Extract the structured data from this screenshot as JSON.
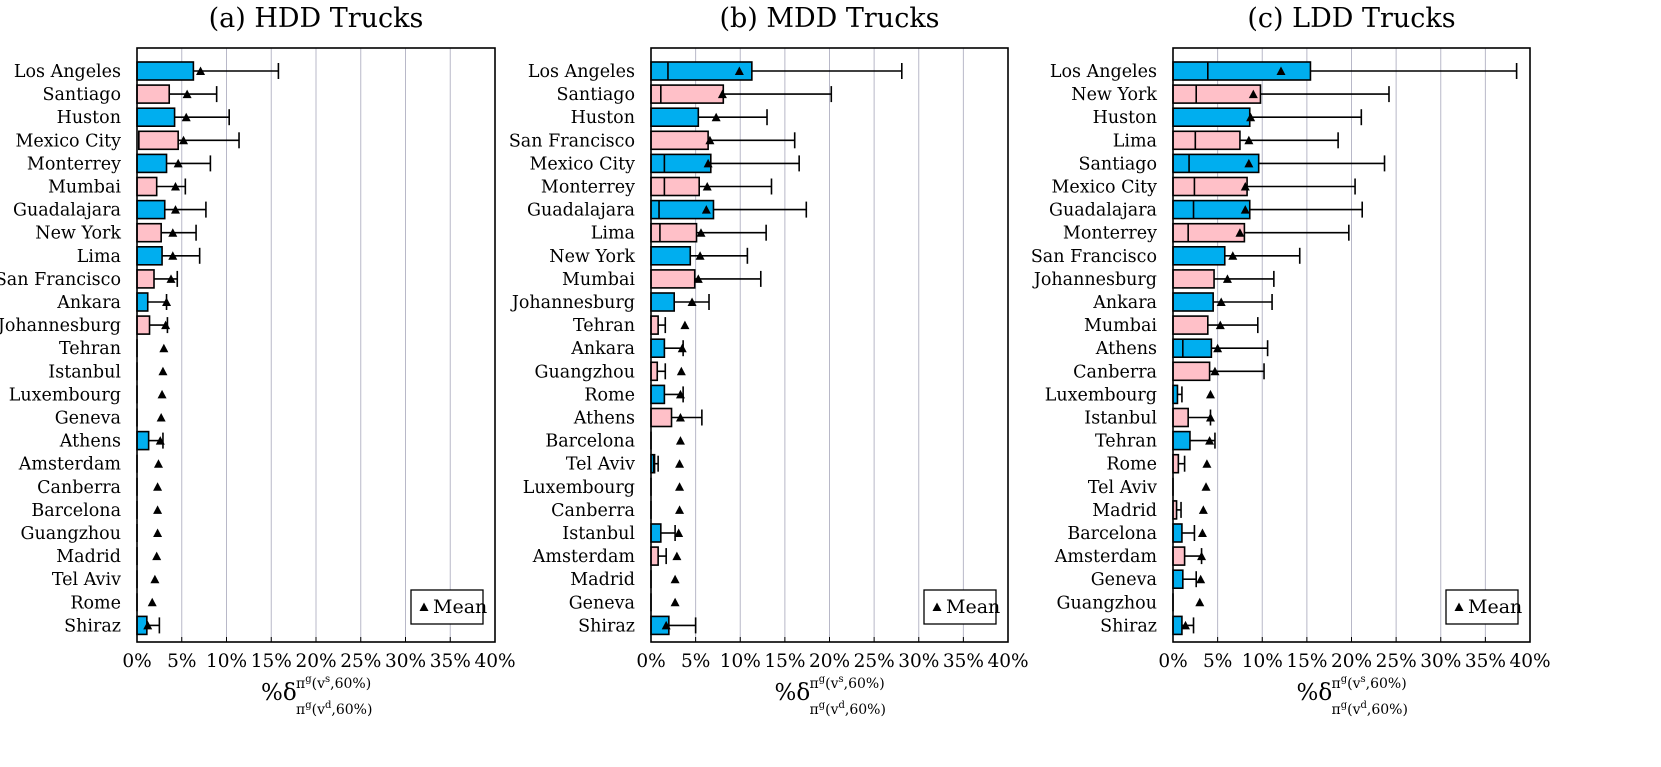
{
  "colors": {
    "blue": "#00aeef",
    "pink": "#ffc0c8",
    "grid": "#b8b8c8",
    "stroke": "#000000"
  },
  "legend_label": "Mean",
  "xlabel": {
    "main": "%δ",
    "sup": "π",
    "sup_sub": "g",
    "sup_args": "(v",
    "sup_s": "s",
    "sup_tail": ",60%)",
    "sub": "π",
    "sub_sup": "g",
    "sub_args": "(v",
    "sub_d": "d",
    "sub_tail": ",60%)"
  },
  "chart_data": [
    {
      "type": "bar",
      "title": "(a) HDD Trucks",
      "xlim": [
        0,
        40
      ],
      "xticks": [
        "0%",
        "5%",
        "10%",
        "15%",
        "20%",
        "25%",
        "30%",
        "35%",
        "40%"
      ],
      "grid": true,
      "legend": "bottom-right",
      "categories": [
        "Los Angeles",
        "Santiago",
        "Huston",
        "Mexico City",
        "Monterrey",
        "Mumbai",
        "Guadalajara",
        "New York",
        "Lima",
        "San Francisco",
        "Ankara",
        "Johannesburg",
        "Tehran",
        "Istanbul",
        "Luxembourg",
        "Geneva",
        "Athens",
        "Amsterdam",
        "Canberra",
        "Barcelona",
        "Guangzhou",
        "Madrid",
        "Tel Aviv",
        "Rome",
        "Shiraz"
      ],
      "bar_colors": [
        "blue",
        "pink",
        "blue",
        "pink",
        "blue",
        "pink",
        "blue",
        "pink",
        "blue",
        "pink",
        "blue",
        "pink",
        "pink",
        "pink",
        "pink",
        "pink",
        "blue",
        "pink",
        "pink",
        "pink",
        "pink",
        "pink",
        "pink",
        "pink",
        "blue"
      ],
      "q1": [
        0,
        0,
        0,
        0.2,
        0,
        0,
        0,
        0,
        0,
        0,
        0,
        0,
        0,
        0,
        0,
        0,
        0,
        0,
        0,
        0,
        0,
        0,
        0,
        0,
        0
      ],
      "median": [
        0,
        0,
        0,
        0.2,
        0,
        0,
        0,
        0,
        0,
        0,
        0,
        0,
        0,
        0,
        0,
        0,
        0,
        0,
        0,
        0,
        0,
        0,
        0,
        0,
        0
      ],
      "q3": [
        6.3,
        3.6,
        4.2,
        4.6,
        3.3,
        2.2,
        3.1,
        2.7,
        2.8,
        1.9,
        1.2,
        1.4,
        0,
        0,
        0,
        0,
        1.3,
        0,
        0,
        0,
        0,
        0,
        0,
        0,
        1.1
      ],
      "whisker": [
        15.8,
        8.9,
        10.3,
        11.4,
        8.2,
        5.4,
        7.7,
        6.6,
        7.0,
        4.5,
        3.3,
        3.4,
        0,
        0,
        0,
        0,
        2.9,
        0,
        0,
        0,
        0,
        0,
        0,
        0,
        2.5
      ],
      "mean": [
        7.1,
        5.6,
        5.5,
        5.2,
        4.6,
        4.3,
        4.3,
        4.0,
        4.0,
        3.8,
        3.3,
        3.2,
        3.0,
        2.9,
        2.8,
        2.7,
        2.6,
        2.4,
        2.3,
        2.3,
        2.3,
        2.2,
        2.0,
        1.7,
        1.2
      ]
    },
    {
      "type": "bar",
      "title": "(b) MDD Trucks",
      "xlim": [
        0,
        40
      ],
      "xticks": [
        "0%",
        "5%",
        "10%",
        "15%",
        "20%",
        "25%",
        "30%",
        "35%",
        "40%"
      ],
      "grid": true,
      "legend": "bottom-right",
      "categories": [
        "Los Angeles",
        "Santiago",
        "Huston",
        "San Francisco",
        "Mexico City",
        "Monterrey",
        "Guadalajara",
        "Lima",
        "New York",
        "Mumbai",
        "Johannesburg",
        "Tehran",
        "Ankara",
        "Guangzhou",
        "Rome",
        "Athens",
        "Barcelona",
        "Tel Aviv",
        "Luxembourg",
        "Canberra",
        "Istanbul",
        "Amsterdam",
        "Madrid",
        "Geneva",
        "Shiraz"
      ],
      "bar_colors": [
        "blue",
        "pink",
        "blue",
        "pink",
        "blue",
        "pink",
        "blue",
        "pink",
        "blue",
        "pink",
        "blue",
        "pink",
        "blue",
        "pink",
        "blue",
        "pink",
        "pink",
        "blue",
        "pink",
        "pink",
        "blue",
        "pink",
        "pink",
        "pink",
        "blue"
      ],
      "q1": [
        0,
        0,
        0,
        0,
        0,
        0,
        0,
        0,
        0,
        0,
        0,
        0,
        0,
        0,
        0,
        0,
        0,
        0,
        0,
        0,
        0,
        0,
        0,
        0,
        0
      ],
      "median": [
        1.9,
        1.1,
        0,
        0,
        1.5,
        1.5,
        0.9,
        1.0,
        0,
        0,
        0,
        0,
        0,
        0,
        0,
        0,
        0,
        0.3,
        0,
        0,
        0,
        0,
        0,
        0,
        0
      ],
      "q3": [
        11.3,
        8.1,
        5.3,
        6.4,
        6.7,
        5.4,
        7.0,
        5.1,
        4.4,
        4.9,
        2.6,
        0.8,
        1.5,
        0.7,
        1.5,
        2.3,
        0,
        0.4,
        0,
        0,
        1.1,
        0.8,
        0,
        0,
        2.0
      ],
      "whisker": [
        28.1,
        20.2,
        13.0,
        16.1,
        16.6,
        13.5,
        17.4,
        12.9,
        10.8,
        12.3,
        6.5,
        1.6,
        3.6,
        1.6,
        3.6,
        5.7,
        0,
        0.8,
        0,
        0,
        2.7,
        1.7,
        0,
        0,
        5.0
      ],
      "mean": [
        9.9,
        8.0,
        7.3,
        6.6,
        6.4,
        6.3,
        6.2,
        5.6,
        5.5,
        5.3,
        4.6,
        3.8,
        3.5,
        3.4,
        3.3,
        3.3,
        3.3,
        3.2,
        3.2,
        3.2,
        3.1,
        2.9,
        2.7,
        2.7,
        1.7
      ]
    },
    {
      "type": "bar",
      "title": "(c) LDD Trucks",
      "xlim": [
        0,
        40
      ],
      "xticks": [
        "0%",
        "5%",
        "10%",
        "15%",
        "20%",
        "25%",
        "30%",
        "35%",
        "40%"
      ],
      "grid": true,
      "legend": "bottom-right",
      "categories": [
        "Los Angeles",
        "New York",
        "Huston",
        "Lima",
        "Santiago",
        "Mexico City",
        "Guadalajara",
        "Monterrey",
        "San Francisco",
        "Johannesburg",
        "Ankara",
        "Mumbai",
        "Athens",
        "Canberra",
        "Luxembourg",
        "Istanbul",
        "Tehran",
        "Rome",
        "Tel Aviv",
        "Madrid",
        "Barcelona",
        "Amsterdam",
        "Geneva",
        "Guangzhou",
        "Shiraz"
      ],
      "bar_colors": [
        "blue",
        "pink",
        "blue",
        "pink",
        "blue",
        "pink",
        "blue",
        "pink",
        "blue",
        "pink",
        "blue",
        "pink",
        "blue",
        "pink",
        "blue",
        "pink",
        "blue",
        "pink",
        "pink",
        "pink",
        "blue",
        "pink",
        "blue",
        "pink",
        "blue"
      ],
      "q1": [
        0,
        0,
        0,
        0,
        0,
        0,
        0,
        0,
        0,
        0,
        0,
        0,
        0,
        0,
        0,
        0,
        0,
        0,
        0,
        0,
        0,
        0,
        0,
        0,
        0
      ],
      "median": [
        3.9,
        2.6,
        0,
        2.5,
        1.8,
        2.4,
        2.3,
        1.7,
        0,
        0,
        0,
        0,
        1.1,
        0,
        0,
        0,
        0,
        0,
        0,
        0,
        0,
        0,
        0,
        0,
        0
      ],
      "q3": [
        15.4,
        9.8,
        8.6,
        7.5,
        9.6,
        8.3,
        8.6,
        8.0,
        5.8,
        4.6,
        4.5,
        3.9,
        4.3,
        4.1,
        0.5,
        1.7,
        1.9,
        0.6,
        0,
        0.4,
        1.0,
        1.3,
        1.1,
        0,
        1.0
      ],
      "whisker": [
        38.5,
        24.2,
        21.1,
        18.5,
        23.7,
        20.4,
        21.2,
        19.7,
        14.2,
        11.3,
        11.1,
        9.5,
        10.6,
        10.2,
        1.0,
        4.2,
        4.7,
        1.3,
        0,
        0.9,
        2.4,
        3.2,
        2.6,
        0,
        2.3
      ],
      "mean": [
        12.1,
        9.0,
        8.7,
        8.5,
        8.5,
        8.1,
        8.1,
        7.5,
        6.7,
        6.1,
        5.4,
        5.3,
        5.0,
        4.7,
        4.2,
        4.2,
        4.1,
        3.8,
        3.7,
        3.4,
        3.3,
        3.2,
        3.1,
        3.0,
        1.4
      ]
    }
  ]
}
